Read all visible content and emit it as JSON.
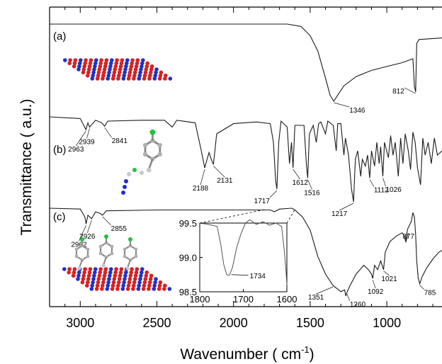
{
  "chart_data": {
    "type": "line",
    "xlabel": "Wavenumber ( cm",
    "xlabel_sup": "-1",
    "xlabel_close": ")",
    "ylabel": "Transmittance ( a.u.)",
    "xlim": [
      3200,
      640
    ],
    "x_reversed": true,
    "x_ticks": [
      3000,
      2500,
      2000,
      1500,
      1000
    ],
    "grid": false,
    "panels": [
      {
        "label": "(a)",
        "molecule": "graphene-like sheet",
        "curve": [
          [
            3200,
            1
          ],
          [
            1650,
            1
          ],
          [
            1560,
            0.97
          ],
          [
            1500,
            0.85
          ],
          [
            1450,
            0.65
          ],
          [
            1400,
            0.3
          ],
          [
            1370,
            0.08
          ],
          [
            1346,
            0
          ],
          [
            1320,
            0.08
          ],
          [
            1280,
            0.2
          ],
          [
            1200,
            0.32
          ],
          [
            1100,
            0.4
          ],
          [
            1000,
            0.45
          ],
          [
            900,
            0.5
          ],
          [
            830,
            0.55
          ],
          [
            820,
            0.2
          ],
          [
            812,
            0.12
          ],
          [
            805,
            0.75
          ],
          [
            790,
            0.8
          ],
          [
            640,
            0.82
          ]
        ],
        "annotations": [
          {
            "x": 1346,
            "text": "1346"
          },
          {
            "x": 812,
            "text": "812"
          }
        ]
      },
      {
        "label": "(b)",
        "molecule": "azide-functionalized aromatic molecule",
        "curve": [
          [
            3200,
            1
          ],
          [
            3000,
            0.98
          ],
          [
            2963,
            0.85
          ],
          [
            2950,
            0.93
          ],
          [
            2939,
            0.88
          ],
          [
            2900,
            0.96
          ],
          [
            2860,
            0.93
          ],
          [
            2841,
            0.89
          ],
          [
            2820,
            0.95
          ],
          [
            2600,
            0.96
          ],
          [
            2450,
            0.96
          ],
          [
            2400,
            0.88
          ],
          [
            2370,
            0.96
          ],
          [
            2250,
            0.93
          ],
          [
            2210,
            0.6
          ],
          [
            2188,
            0.4
          ],
          [
            2160,
            0.58
          ],
          [
            2145,
            0.5
          ],
          [
            2131,
            0.44
          ],
          [
            2110,
            0.8
          ],
          [
            2000,
            0.92
          ],
          [
            1850,
            0.94
          ],
          [
            1760,
            0.92
          ],
          [
            1740,
            0.7
          ],
          [
            1725,
            0.25
          ],
          [
            1717,
            0.15
          ],
          [
            1705,
            0.7
          ],
          [
            1690,
            0.95
          ],
          [
            1650,
            0.88
          ],
          [
            1635,
            0.45
          ],
          [
            1622,
            0.7
          ],
          [
            1612,
            0.4
          ],
          [
            1600,
            0.9
          ],
          [
            1540,
            0.9
          ],
          [
            1525,
            0.45
          ],
          [
            1516,
            0.28
          ],
          [
            1505,
            0.8
          ],
          [
            1480,
            0.9
          ],
          [
            1460,
            0.7
          ],
          [
            1445,
            0.92
          ],
          [
            1430,
            0.94
          ],
          [
            1400,
            0.8
          ],
          [
            1385,
            0.95
          ],
          [
            1350,
            0.9
          ],
          [
            1330,
            0.6
          ],
          [
            1320,
            0.92
          ],
          [
            1300,
            0.92
          ],
          [
            1280,
            0.55
          ],
          [
            1270,
            0.75
          ],
          [
            1250,
            0.55
          ],
          [
            1230,
            0.15
          ],
          [
            1217,
            0.0
          ],
          [
            1205,
            0.5
          ],
          [
            1190,
            0.6
          ],
          [
            1170,
            0.3
          ],
          [
            1160,
            0.5
          ],
          [
            1140,
            0.42
          ],
          [
            1125,
            0.55
          ],
          [
            1112,
            0.28
          ],
          [
            1100,
            0.6
          ],
          [
            1080,
            0.42
          ],
          [
            1065,
            0.7
          ],
          [
            1050,
            0.45
          ],
          [
            1040,
            0.65
          ],
          [
            1026,
            0.3
          ],
          [
            1015,
            0.7
          ],
          [
            990,
            0.52
          ],
          [
            975,
            0.78
          ],
          [
            960,
            0.55
          ],
          [
            945,
            0.7
          ],
          [
            925,
            0.3
          ],
          [
            910,
            0.75
          ],
          [
            895,
            0.45
          ],
          [
            880,
            0.8
          ],
          [
            860,
            0.6
          ],
          [
            845,
            0.38
          ],
          [
            830,
            0.82
          ],
          [
            815,
            0.7
          ],
          [
            800,
            0.4
          ],
          [
            780,
            0.2
          ],
          [
            765,
            0.75
          ],
          [
            750,
            0.55
          ],
          [
            730,
            0.7
          ],
          [
            710,
            0.45
          ],
          [
            690,
            0.75
          ],
          [
            670,
            0.55
          ],
          [
            640,
            0.6
          ]
        ],
        "annotations": [
          {
            "x": 2963,
            "text": "2963"
          },
          {
            "x": 2939,
            "text": "2939"
          },
          {
            "x": 2841,
            "text": "2841"
          },
          {
            "x": 2188,
            "text": "2188"
          },
          {
            "x": 2131,
            "text": "2131"
          },
          {
            "x": 1717,
            "text": "1717"
          },
          {
            "x": 1612,
            "text": "1612"
          },
          {
            "x": 1516,
            "text": "1516"
          },
          {
            "x": 1217,
            "text": "1217"
          },
          {
            "x": 1112,
            "text": "1112"
          },
          {
            "x": 1026,
            "text": "1026"
          }
        ]
      },
      {
        "label": "(c)",
        "molecule": "molecules grafted on sheet",
        "curve": [
          [
            3200,
            1
          ],
          [
            3000,
            0.99
          ],
          [
            2970,
            0.9
          ],
          [
            2962,
            0.82
          ],
          [
            2950,
            0.92
          ],
          [
            2926,
            0.88
          ],
          [
            2900,
            0.96
          ],
          [
            2870,
            0.94
          ],
          [
            2855,
            0.92
          ],
          [
            2830,
            0.97
          ],
          [
            2500,
            0.98
          ],
          [
            1900,
            0.98
          ],
          [
            1760,
            0.98
          ],
          [
            1734,
            0.96
          ],
          [
            1700,
            0.99
          ],
          [
            1620,
            1
          ],
          [
            1600,
            0.98
          ],
          [
            1550,
            0.9
          ],
          [
            1500,
            0.75
          ],
          [
            1450,
            0.45
          ],
          [
            1400,
            0.25
          ],
          [
            1351,
            0.12
          ],
          [
            1300,
            0.05
          ],
          [
            1275,
            0.07
          ],
          [
            1268,
            0.0
          ],
          [
            1260,
            0.04
          ],
          [
            1240,
            0.12
          ],
          [
            1200,
            0.25
          ],
          [
            1150,
            0.35
          ],
          [
            1120,
            0.3
          ],
          [
            1100,
            0.25
          ],
          [
            1092,
            0.2
          ],
          [
            1080,
            0.35
          ],
          [
            1060,
            0.3
          ],
          [
            1040,
            0.4
          ],
          [
            1021,
            0.3
          ],
          [
            1010,
            0.5
          ],
          [
            980,
            0.62
          ],
          [
            940,
            0.68
          ],
          [
            900,
            0.72
          ],
          [
            885,
            0.68
          ],
          [
            877,
            0.62
          ],
          [
            865,
            0.76
          ],
          [
            840,
            0.85
          ],
          [
            830,
            0.95
          ],
          [
            820,
            0.9
          ],
          [
            812,
            0.7
          ],
          [
            805,
            0.4
          ],
          [
            795,
            0.2
          ],
          [
            785,
            0.14
          ],
          [
            770,
            0.22
          ],
          [
            740,
            0.32
          ],
          [
            700,
            0.42
          ],
          [
            660,
            0.5
          ],
          [
            640,
            0.52
          ]
        ],
        "annotations": [
          {
            "x": 2962,
            "text": "2962"
          },
          {
            "x": 2926,
            "text": "2926"
          },
          {
            "x": 2855,
            "text": "2855"
          },
          {
            "x": 1351,
            "text": "1351"
          },
          {
            "x": 1260,
            "text": "1260"
          },
          {
            "x": 1092,
            "text": "1092"
          },
          {
            "x": 1021,
            "text": "1021"
          },
          {
            "x": 877,
            "text": "877"
          },
          {
            "x": 785,
            "text": "785"
          }
        ]
      }
    ],
    "inset": {
      "xlim": [
        1800,
        1600
      ],
      "ylim": [
        98.5,
        99.5
      ],
      "x_ticks": [
        "1800",
        "1700",
        "1600"
      ],
      "y_ticks": [
        "99.5",
        "99.0",
        "98.5"
      ],
      "curve": [
        [
          1800,
          99.5
        ],
        [
          1780,
          99.48
        ],
        [
          1760,
          99.45
        ],
        [
          1752,
          99.2
        ],
        [
          1745,
          98.9
        ],
        [
          1738,
          98.75
        ],
        [
          1732,
          98.74
        ],
        [
          1725,
          98.85
        ],
        [
          1715,
          99.15
        ],
        [
          1705,
          99.35
        ],
        [
          1695,
          99.5
        ],
        [
          1685,
          99.55
        ],
        [
          1670,
          99.48
        ],
        [
          1655,
          99.52
        ],
        [
          1640,
          99.47
        ],
        [
          1625,
          99.5
        ],
        [
          1612,
          99.45
        ],
        [
          1606,
          99.1
        ],
        [
          1602,
          98.8
        ],
        [
          1600,
          98.6
        ]
      ],
      "annotation": {
        "x": 1734,
        "text": "1734"
      }
    }
  }
}
